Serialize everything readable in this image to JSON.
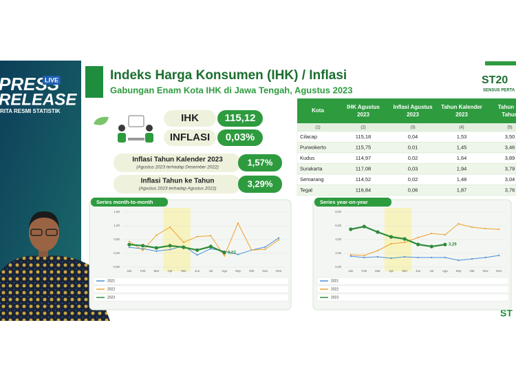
{
  "banner": {
    "line1": "PRESS",
    "line2": "RELEASE",
    "badge": "LIVE",
    "tagline": "RITA RESMI STATISTIK"
  },
  "header": {
    "title": "Indeks Harga Konsumen (IHK) / Inflasi",
    "subtitle": "Gabungan Enam Kota IHK di Jawa Tengah, Agustus 2023",
    "logo": "ST20",
    "logo_sub": "SENSUS PERTA",
    "corner_logo": "ST"
  },
  "indicators": [
    {
      "label": "IHK",
      "value": "115,12"
    },
    {
      "label": "INFLASI",
      "value": "0,03%"
    }
  ],
  "inflation_boxes": [
    {
      "label": "Inflasi Tahun Kalender 2023",
      "note": "(Agustus 2023 terhadap Desember 2022)",
      "value": "1,57%"
    },
    {
      "label": "Inflasi Tahun ke Tahun",
      "note": "(Agustus 2023 terhadap Agustus 2022)",
      "value": "3,29%"
    }
  ],
  "table": {
    "headers": [
      "Kota",
      "IHK Agustus 2023",
      "Inflasi Agustus 2023",
      "Tahun Kalender 2023",
      "Tahun ke Tahun"
    ],
    "index_row": [
      "(1)",
      "(2)",
      "(3)",
      "(4)",
      "(5)"
    ],
    "rows": [
      [
        "Cilacap",
        "115,18",
        "0,04",
        "1,53",
        "3,50"
      ],
      [
        "Purwokerto",
        "115,75",
        "0,01",
        "1,45",
        "3,46"
      ],
      [
        "Kudus",
        "114,97",
        "0,02",
        "1,64",
        "3,89"
      ],
      [
        "Surakarta",
        "117,08",
        "0,03",
        "1,94",
        "3,79"
      ],
      [
        "Semarang",
        "114,52",
        "0,02",
        "1,48",
        "3,04"
      ],
      [
        "Tegal",
        "116,84",
        "0,06",
        "1,87",
        "3,76"
      ]
    ]
  },
  "charts": [
    {
      "type": "line",
      "title": "Series month-to-month",
      "categories": [
        "Jan",
        "Feb",
        "Mar",
        "Apr",
        "Mei",
        "Jun",
        "Jul",
        "Agu",
        "Sep",
        "Okt",
        "Nov",
        "Des"
      ],
      "ylim": [
        -0.5,
        1.5
      ],
      "yticks": [
        {
          "value": -0.5,
          "label": "-0,50"
        },
        {
          "value": 0,
          "label": "0,00"
        },
        {
          "value": 0.5,
          "label": "0,50"
        },
        {
          "value": 1,
          "label": "1,00"
        },
        {
          "value": 1.5,
          "label": "1,50"
        }
      ],
      "series": [
        {
          "name": "2021",
          "color": "#4a8fd8",
          "values": [
            0.22,
            0.17,
            0.08,
            0.14,
            0.27,
            -0.06,
            0.17,
            0.08,
            -0.04,
            0.12,
            0.23,
            0.56
          ]
        },
        {
          "name": "2022",
          "color": "#f0a030",
          "values": [
            0.43,
            0.11,
            0.66,
            0.95,
            0.4,
            0.61,
            0.64,
            -0.09,
            1.1,
            0.12,
            0.15,
            0.49
          ]
        },
        {
          "name": "2023",
          "color": "#2e8b3a",
          "values": [
            0.32,
            0.28,
            0.2,
            0.28,
            0.22,
            0.12,
            0.25,
            0.03,
            null,
            null,
            null,
            null
          ],
          "value_labels": [
            null,
            null,
            null,
            null,
            null,
            null,
            null,
            "0,03",
            null,
            null,
            null,
            null
          ]
        }
      ]
    },
    {
      "type": "line",
      "title": "Series year-on-year",
      "categories": [
        "Jan",
        "Feb",
        "Mar",
        "Apr",
        "Mei",
        "Jun",
        "Jul",
        "Agu",
        "Sep",
        "Okt",
        "Nov",
        "Des"
      ],
      "ylim": [
        0,
        8
      ],
      "yticks": [
        {
          "value": 0,
          "label": "0,00"
        },
        {
          "value": 2,
          "label": "2,00"
        },
        {
          "value": 4,
          "label": "4,00"
        },
        {
          "value": 6,
          "label": "6,00"
        },
        {
          "value": 8,
          "label": "8,00"
        }
      ],
      "series": [
        {
          "name": "2021",
          "color": "#4a8fd8",
          "values": [
            1.6,
            1.4,
            1.5,
            1.3,
            1.5,
            1.4,
            1.4,
            1.4,
            1.0,
            1.2,
            1.4,
            1.7
          ]
        },
        {
          "name": "2022",
          "color": "#f0a030",
          "values": [
            1.8,
            1.7,
            2.4,
            3.4,
            3.6,
            4.3,
            4.9,
            4.7,
            6.3,
            5.8,
            5.6,
            5.5
          ]
        },
        {
          "name": "2023",
          "color": "#2e8b3a",
          "values": [
            5.5,
            5.9,
            5.1,
            4.4,
            4.1,
            3.3,
            3.0,
            3.29,
            null,
            null,
            null,
            null
          ],
          "value_labels": [
            null,
            null,
            null,
            null,
            null,
            null,
            null,
            "3,29",
            null,
            null,
            null,
            null
          ]
        }
      ]
    }
  ]
}
